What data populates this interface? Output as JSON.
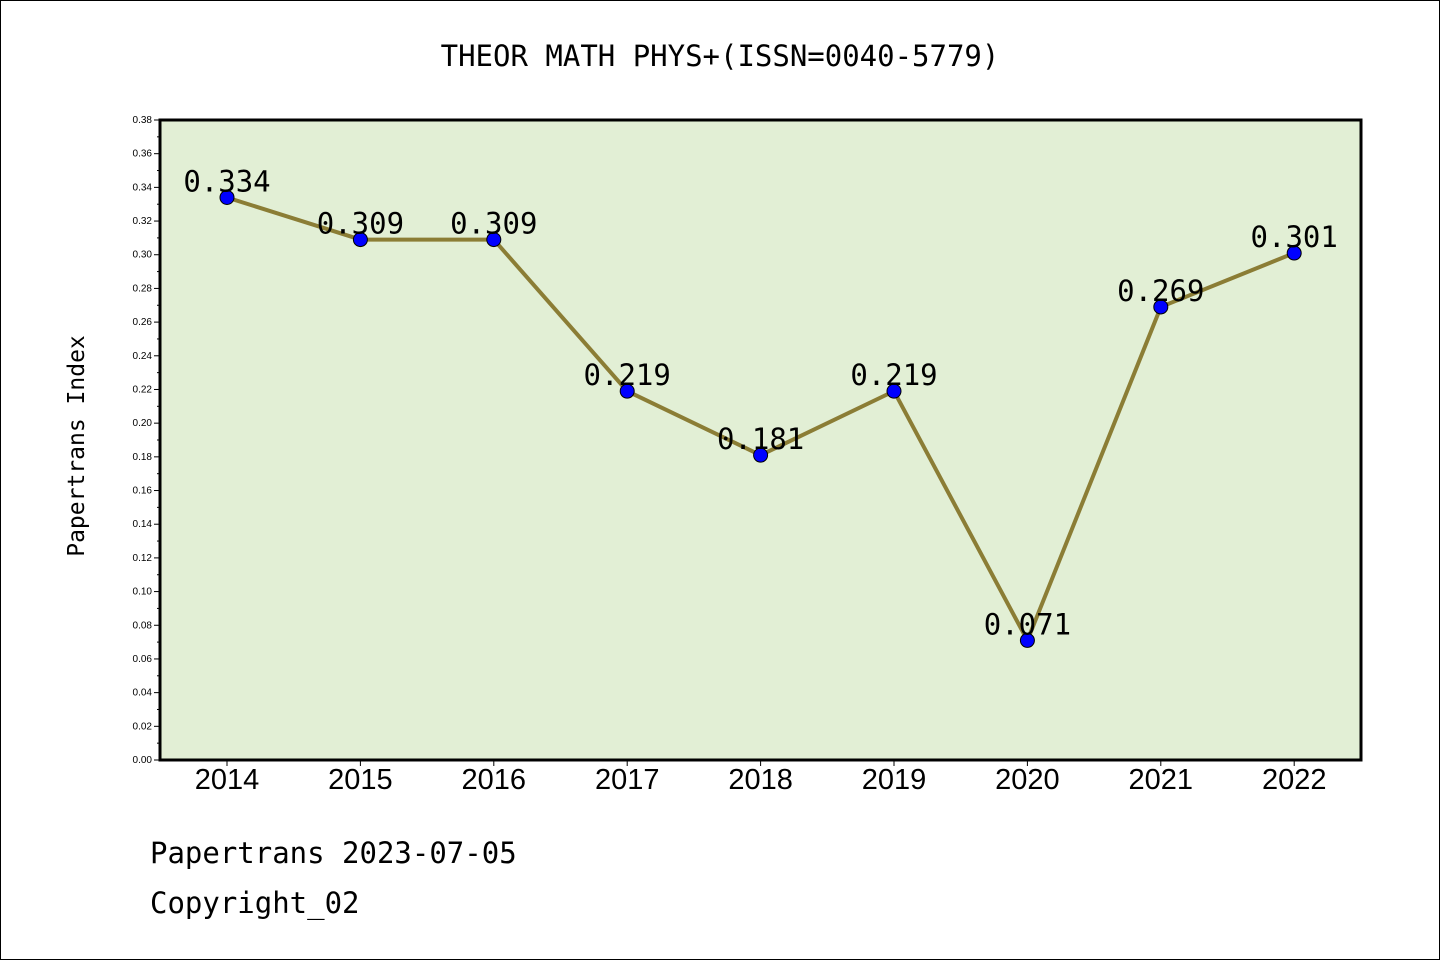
{
  "chart_data": {
    "type": "line",
    "title": "THEOR MATH PHYS+(ISSN=0040-5779)",
    "xlabel": "",
    "ylabel": "Papertrans Index",
    "categories": [
      "2014",
      "2015",
      "2016",
      "2017",
      "2018",
      "2019",
      "2020",
      "2021",
      "2022"
    ],
    "values": [
      0.334,
      0.309,
      0.309,
      0.219,
      0.181,
      0.219,
      0.071,
      0.269,
      0.301
    ],
    "data_labels": [
      "0.334",
      "0.309",
      "0.309",
      "0.219",
      "0.181",
      "0.219",
      "0.071",
      "0.269",
      "0.301"
    ],
    "ylim": [
      0,
      0.38
    ],
    "yticks": [
      "0.00",
      "0.02",
      "0.04",
      "0.06",
      "0.08",
      "0.10",
      "0.12",
      "0.14",
      "0.16",
      "0.18",
      "0.20",
      "0.22",
      "0.24",
      "0.26",
      "0.28",
      "0.30",
      "0.32",
      "0.34",
      "0.36",
      "0.38"
    ],
    "grid": false,
    "legend": "none",
    "colors": {
      "plot_background": "#e2efd5",
      "line": "#8b7d35",
      "marker": "#0000ff",
      "axis": "#000000"
    }
  },
  "footer": {
    "source": "Papertrans 2023-07-05",
    "copyright": "Copyright_02"
  }
}
